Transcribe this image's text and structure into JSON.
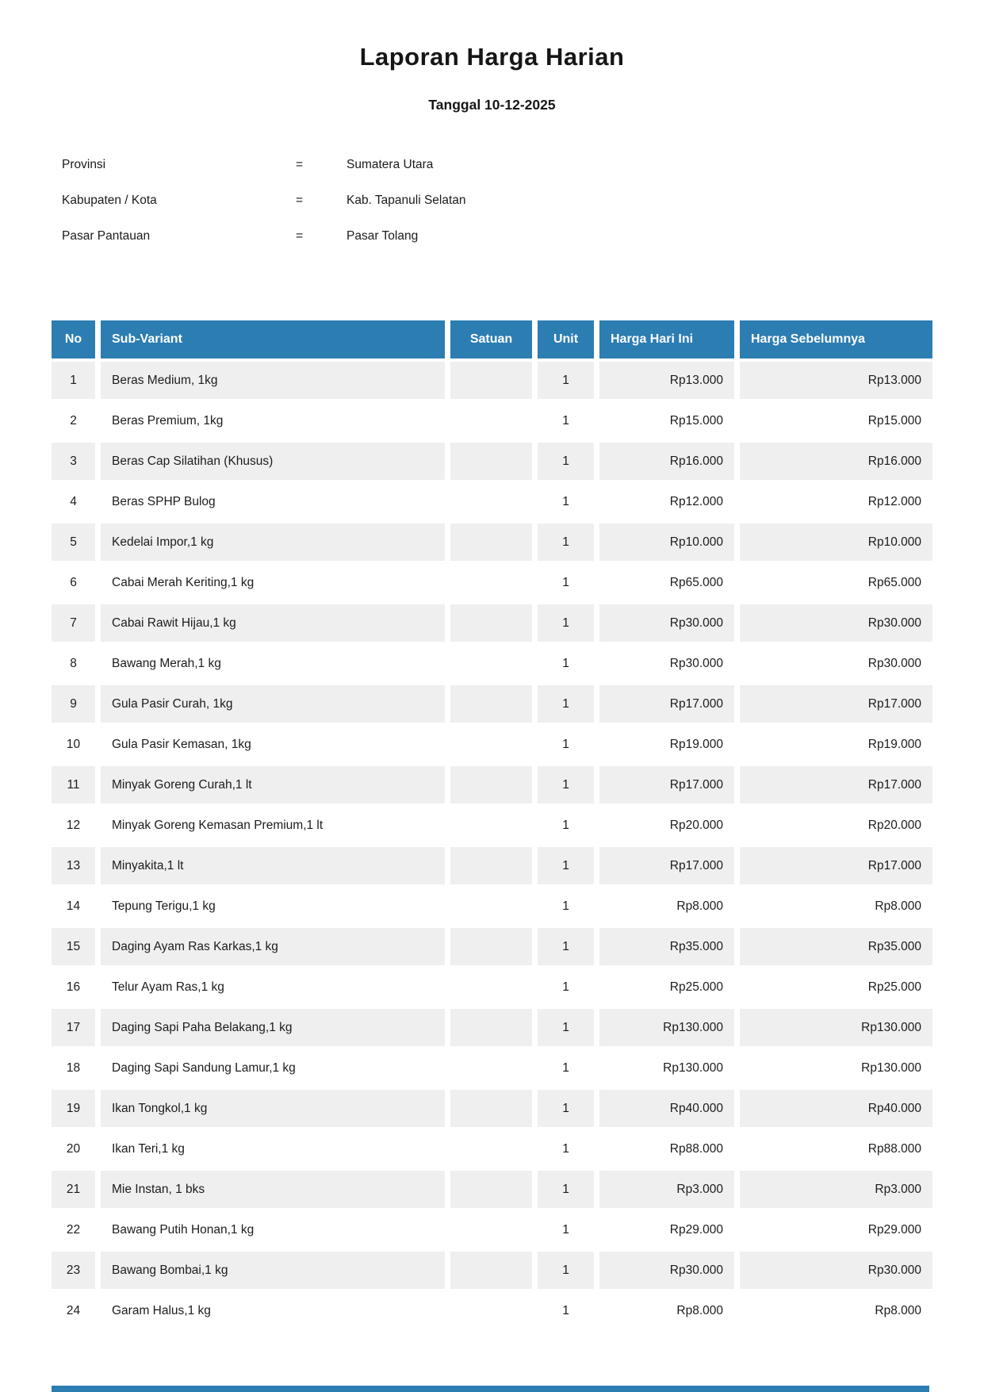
{
  "page": {
    "title": "Laporan Harga Harian",
    "subtitle": "Tanggal 10-12-2025"
  },
  "meta": {
    "separator": "=",
    "fields": [
      {
        "label": "Provinsi",
        "value": "Sumatera Utara"
      },
      {
        "label": "Kabupaten / Kota",
        "value": "Kab. Tapanuli Selatan"
      },
      {
        "label": "Pasar Pantauan",
        "value": "Pasar Tolang"
      }
    ]
  },
  "table": {
    "columns": [
      "No",
      "Sub-Variant",
      "Satuan",
      "Unit",
      "Harga Hari Ini",
      "Harga Sebelumnya"
    ],
    "rows": [
      {
        "no": "1",
        "sub_variant": "Beras Medium, 1kg",
        "satuan": "",
        "unit": "1",
        "harga_hari_ini": "Rp13.000",
        "harga_sebelumnya": "Rp13.000"
      },
      {
        "no": "2",
        "sub_variant": "Beras Premium, 1kg",
        "satuan": "",
        "unit": "1",
        "harga_hari_ini": "Rp15.000",
        "harga_sebelumnya": "Rp15.000"
      },
      {
        "no": "3",
        "sub_variant": "Beras Cap Silatihan (Khusus)",
        "satuan": "",
        "unit": "1",
        "harga_hari_ini": "Rp16.000",
        "harga_sebelumnya": "Rp16.000"
      },
      {
        "no": "4",
        "sub_variant": "Beras SPHP Bulog",
        "satuan": "",
        "unit": "1",
        "harga_hari_ini": "Rp12.000",
        "harga_sebelumnya": "Rp12.000"
      },
      {
        "no": "5",
        "sub_variant": "Kedelai Impor,1 kg",
        "satuan": "",
        "unit": "1",
        "harga_hari_ini": "Rp10.000",
        "harga_sebelumnya": "Rp10.000"
      },
      {
        "no": "6",
        "sub_variant": "Cabai Merah Keriting,1 kg",
        "satuan": "",
        "unit": "1",
        "harga_hari_ini": "Rp65.000",
        "harga_sebelumnya": "Rp65.000"
      },
      {
        "no": "7",
        "sub_variant": "Cabai Rawit Hijau,1 kg",
        "satuan": "",
        "unit": "1",
        "harga_hari_ini": "Rp30.000",
        "harga_sebelumnya": "Rp30.000"
      },
      {
        "no": "8",
        "sub_variant": "Bawang Merah,1 kg",
        "satuan": "",
        "unit": "1",
        "harga_hari_ini": "Rp30.000",
        "harga_sebelumnya": "Rp30.000"
      },
      {
        "no": "9",
        "sub_variant": "Gula Pasir Curah, 1kg",
        "satuan": "",
        "unit": "1",
        "harga_hari_ini": "Rp17.000",
        "harga_sebelumnya": "Rp17.000"
      },
      {
        "no": "10",
        "sub_variant": "Gula Pasir Kemasan, 1kg",
        "satuan": "",
        "unit": "1",
        "harga_hari_ini": "Rp19.000",
        "harga_sebelumnya": "Rp19.000"
      },
      {
        "no": "11",
        "sub_variant": "Minyak Goreng Curah,1 lt",
        "satuan": "",
        "unit": "1",
        "harga_hari_ini": "Rp17.000",
        "harga_sebelumnya": "Rp17.000"
      },
      {
        "no": "12",
        "sub_variant": "Minyak Goreng Kemasan Premium,1 lt",
        "satuan": "",
        "unit": "1",
        "harga_hari_ini": "Rp20.000",
        "harga_sebelumnya": "Rp20.000"
      },
      {
        "no": "13",
        "sub_variant": "Minyakita,1 lt",
        "satuan": "",
        "unit": "1",
        "harga_hari_ini": "Rp17.000",
        "harga_sebelumnya": "Rp17.000"
      },
      {
        "no": "14",
        "sub_variant": "Tepung Terigu,1 kg",
        "satuan": "",
        "unit": "1",
        "harga_hari_ini": "Rp8.000",
        "harga_sebelumnya": "Rp8.000"
      },
      {
        "no": "15",
        "sub_variant": "Daging Ayam Ras Karkas,1 kg",
        "satuan": "",
        "unit": "1",
        "harga_hari_ini": "Rp35.000",
        "harga_sebelumnya": "Rp35.000"
      },
      {
        "no": "16",
        "sub_variant": "Telur Ayam Ras,1 kg",
        "satuan": "",
        "unit": "1",
        "harga_hari_ini": "Rp25.000",
        "harga_sebelumnya": "Rp25.000"
      },
      {
        "no": "17",
        "sub_variant": "Daging Sapi Paha Belakang,1 kg",
        "satuan": "",
        "unit": "1",
        "harga_hari_ini": "Rp130.000",
        "harga_sebelumnya": "Rp130.000"
      },
      {
        "no": "18",
        "sub_variant": "Daging Sapi Sandung Lamur,1 kg",
        "satuan": "",
        "unit": "1",
        "harga_hari_ini": "Rp130.000",
        "harga_sebelumnya": "Rp130.000"
      },
      {
        "no": "19",
        "sub_variant": "Ikan Tongkol,1 kg",
        "satuan": "",
        "unit": "1",
        "harga_hari_ini": "Rp40.000",
        "harga_sebelumnya": "Rp40.000"
      },
      {
        "no": "20",
        "sub_variant": "Ikan Teri,1 kg",
        "satuan": "",
        "unit": "1",
        "harga_hari_ini": "Rp88.000",
        "harga_sebelumnya": "Rp88.000"
      },
      {
        "no": "21",
        "sub_variant": "Mie Instan, 1 bks",
        "satuan": "",
        "unit": "1",
        "harga_hari_ini": "Rp3.000",
        "harga_sebelumnya": "Rp3.000"
      },
      {
        "no": "22",
        "sub_variant": "Bawang Putih Honan,1 kg",
        "satuan": "",
        "unit": "1",
        "harga_hari_ini": "Rp29.000",
        "harga_sebelumnya": "Rp29.000"
      },
      {
        "no": "23",
        "sub_variant": "Bawang Bombai,1 kg",
        "satuan": "",
        "unit": "1",
        "harga_hari_ini": "Rp30.000",
        "harga_sebelumnya": "Rp30.000"
      },
      {
        "no": "24",
        "sub_variant": "Garam Halus,1 kg",
        "satuan": "",
        "unit": "1",
        "harga_hari_ini": "Rp8.000",
        "harga_sebelumnya": "Rp8.000"
      }
    ]
  },
  "colors": {
    "header_bg": "#2C7DB2",
    "header_text": "#FFFFFF",
    "row_alt_bg": "#EFEFEF"
  }
}
